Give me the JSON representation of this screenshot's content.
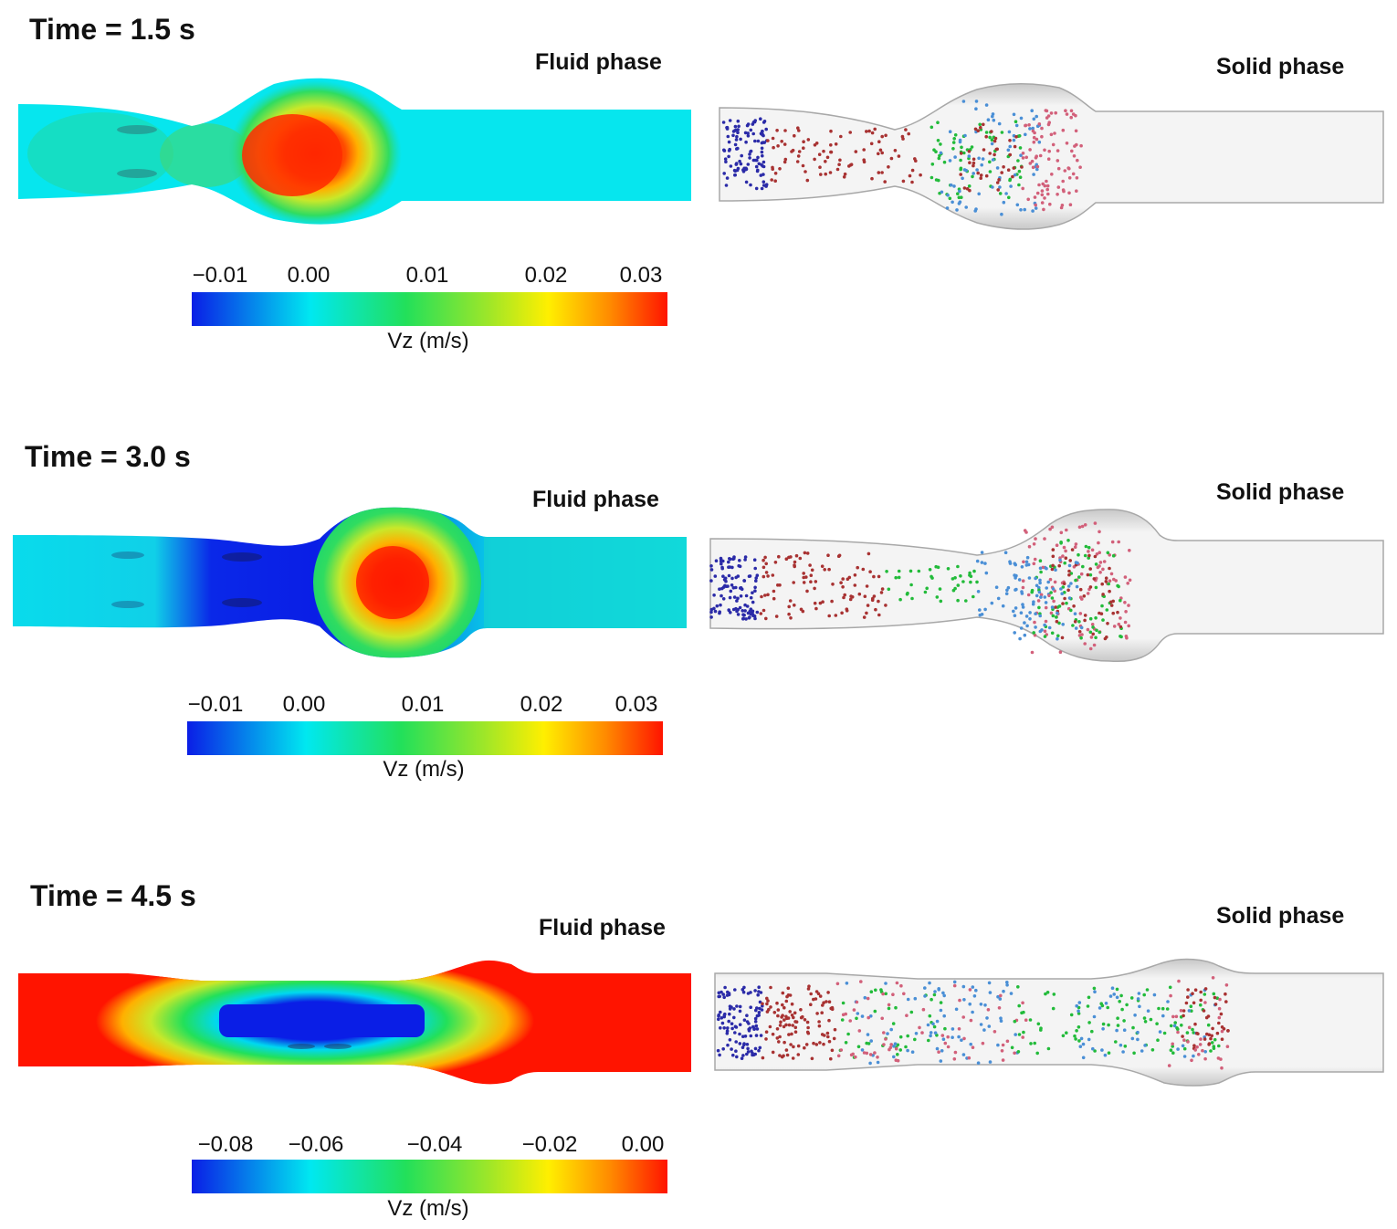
{
  "panels": [
    {
      "time_label": "Time = 1.5 s",
      "fluid_label": "Fluid phase",
      "solid_label": "Solid phase",
      "colorbar": {
        "ticks": [
          "−0.01",
          "0.00",
          "0.01",
          "0.02",
          "0.03"
        ],
        "unit": "Vz (m/s)"
      }
    },
    {
      "time_label": "Time = 3.0 s",
      "fluid_label": "Fluid phase",
      "solid_label": "Solid phase",
      "colorbar": {
        "ticks": [
          "−0.01",
          "0.00",
          "0.01",
          "0.02",
          "0.03"
        ],
        "unit": "Vz (m/s)"
      }
    },
    {
      "time_label": "Time = 4.5 s",
      "fluid_label": "Fluid phase",
      "solid_label": "Solid phase",
      "colorbar": {
        "ticks": [
          "−0.08",
          "−0.06",
          "−0.04",
          "−0.02",
          "0.00"
        ],
        "unit": "Vz (m/s)"
      }
    }
  ],
  "colormap": [
    "#0a1ee6",
    "#00e8f0",
    "#22e05a",
    "#9be62a",
    "#ffef00",
    "#ff8a00",
    "#ff1400"
  ],
  "particle_colors": {
    "blue": "#2b2ba8",
    "red": "#a83232",
    "green": "#22bb3a",
    "lightblue": "#4a8fd6",
    "pink": "#d2607a"
  },
  "pipe_color": "#dcdcdc"
}
